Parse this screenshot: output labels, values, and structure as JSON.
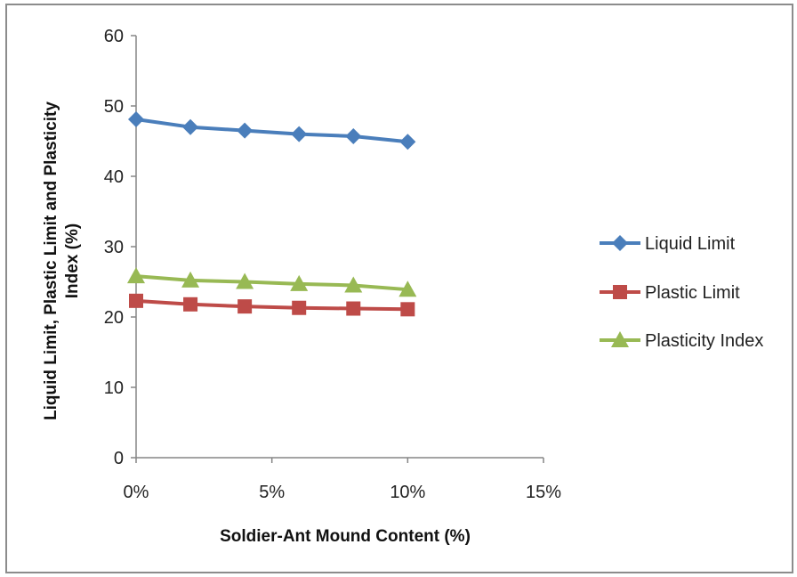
{
  "chart_data": {
    "type": "line",
    "title": "",
    "xlabel": "Soldier-Ant Mound Content (%)",
    "ylabel_line1": "Liquid Limit, Plastic Limit and Plasticity",
    "ylabel_line2": "Index (%)",
    "x": [
      0,
      2,
      4,
      6,
      8,
      10
    ],
    "xlim": [
      0,
      15
    ],
    "ylim": [
      0,
      60
    ],
    "x_ticks": [
      0,
      5,
      10,
      15
    ],
    "x_tick_labels": [
      "0%",
      "5%",
      "10%",
      "15%"
    ],
    "y_ticks": [
      0,
      10,
      20,
      30,
      40,
      50,
      60
    ],
    "y_tick_labels": [
      "0",
      "10",
      "20",
      "30",
      "40",
      "50",
      "60"
    ],
    "grid": false,
    "legend_position": "right",
    "series": [
      {
        "name": "Liquid Limit",
        "values": [
          48.1,
          47.0,
          46.5,
          46.0,
          45.7,
          44.9
        ],
        "color": "#4a7ebb",
        "marker": "diamond"
      },
      {
        "name": "Plastic Limit",
        "values": [
          22.3,
          21.8,
          21.5,
          21.3,
          21.2,
          21.1
        ],
        "color": "#be4b48",
        "marker": "square"
      },
      {
        "name": "Plasticity Index",
        "values": [
          25.8,
          25.2,
          25.0,
          24.7,
          24.5,
          23.9
        ],
        "color": "#98b954",
        "marker": "triangle"
      }
    ]
  }
}
